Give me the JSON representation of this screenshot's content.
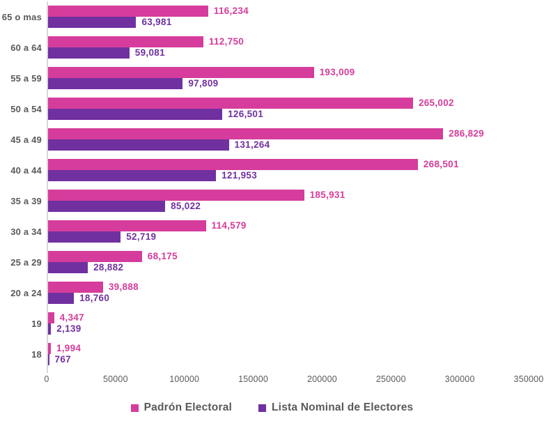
{
  "chart_data": {
    "type": "bar",
    "orientation": "horizontal",
    "title": "",
    "categories": [
      "65 o mas",
      "60 a 64",
      "55 a 59",
      "50 a 54",
      "45 a 49",
      "40 a 44",
      "35 a 39",
      "30 a 34",
      "25 a 29",
      "20 a 24",
      "19",
      "18"
    ],
    "series": [
      {
        "name": "Padrón Electoral",
        "color": "#D63C9B",
        "values": [
          116234,
          112750,
          193009,
          265002,
          286829,
          268501,
          185931,
          114579,
          68175,
          39888,
          4347,
          1994
        ]
      },
      {
        "name": "Lista Nominal de Electores",
        "color": "#7030A0",
        "values": [
          63981,
          59081,
          97809,
          126501,
          131264,
          121953,
          85022,
          52719,
          28882,
          18760,
          2139,
          767
        ]
      }
    ],
    "xlim": [
      0,
      350000
    ],
    "x_ticks": [
      0,
      50000,
      100000,
      150000,
      200000,
      250000,
      300000,
      350000
    ],
    "grid": false,
    "legend_position": "bottom",
    "value_labels": "outside-end, comma formatted, colored like series"
  },
  "colors": {
    "padron_pink": "#D63C9B",
    "lista_purple": "#7030A0",
    "axis_line_gray": "#D9D9D9",
    "label_gray": "#595959"
  }
}
